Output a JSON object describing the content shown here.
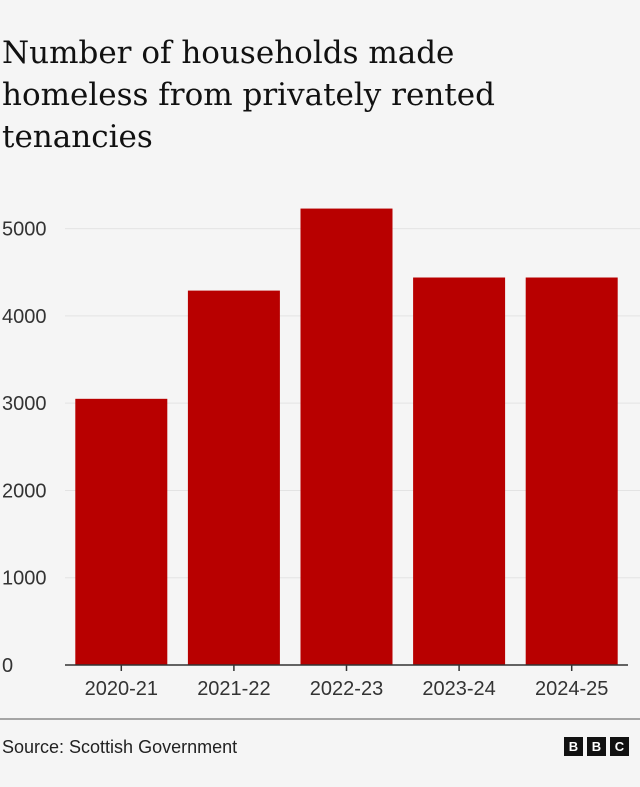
{
  "chart_data": {
    "type": "bar",
    "title": "Number of households made homeless from privately rented tenancies",
    "title_lines": [
      "Number of households made",
      "homeless from privately rented",
      "tenancies"
    ],
    "categories": [
      "2020-21",
      "2021-22",
      "2022-23",
      "2023-24",
      "2024-25"
    ],
    "values": [
      3050,
      4290,
      5230,
      4440,
      4440
    ],
    "ylim": [
      0,
      5500
    ],
    "yticks": [
      0,
      1000,
      2000,
      3000,
      4000,
      5000
    ],
    "ytick_labels": [
      "0",
      "1000",
      "2000",
      "3000",
      "4000",
      "5000"
    ],
    "xlabel": "",
    "ylabel": "",
    "grid": true,
    "bar_color": "#b80000"
  },
  "footer": {
    "source": "Source: Scottish Government",
    "logo_letters": [
      "B",
      "B",
      "C"
    ]
  },
  "colors": {
    "background": "#f5f5f5",
    "bar": "#b80000",
    "grid": "#e3e3e3",
    "axis": "#333333",
    "logo_box": "#111111"
  }
}
